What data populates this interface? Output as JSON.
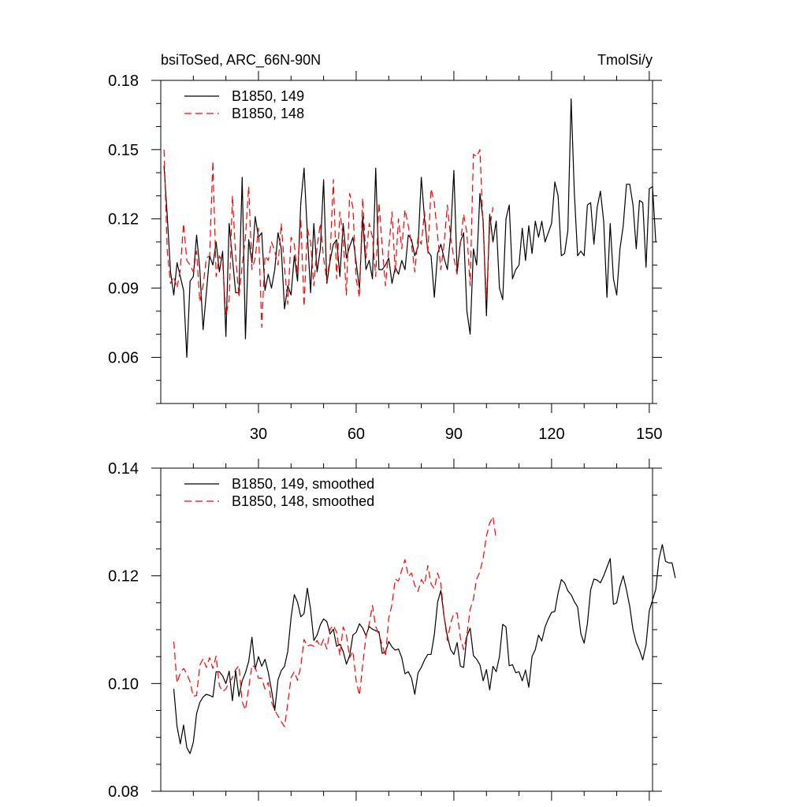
{
  "header": {
    "left_title": "bsiToSed, ARC_66N-90N",
    "right_title": "TmolSi/y"
  },
  "chart_data": [
    {
      "type": "line",
      "panel": "top",
      "xlim": [
        0,
        151
      ],
      "ylim": [
        0.04,
        0.18
      ],
      "x_ticks": [
        30,
        60,
        90,
        120,
        150
      ],
      "x_tick_labels": [
        "30",
        "60",
        "90",
        "120",
        "150"
      ],
      "y_ticks": [
        0.06,
        0.09,
        0.12,
        0.15,
        0.18
      ],
      "y_tick_labels": [
        "0.06",
        "0.09",
        "0.12",
        "0.15",
        "0.18"
      ],
      "y_minor_step": 0.01,
      "x_minor_step": 10,
      "legend_position": "top-left",
      "series": [
        {
          "name": "B1850, 149",
          "color": "#000000",
          "dash": "solid",
          "x_start": 1,
          "values": [
            0.143,
            0.121,
            0.097,
            0.087,
            0.101,
            0.095,
            0.089,
            0.06,
            0.093,
            0.095,
            0.113,
            0.098,
            0.072,
            0.088,
            0.104,
            0.1,
            0.11,
            0.097,
            0.106,
            0.069,
            0.118,
            0.103,
            0.088,
            0.088,
            0.138,
            0.068,
            0.111,
            0.101,
            0.121,
            0.112,
            0.114,
            0.089,
            0.096,
            0.09,
            0.098,
            0.114,
            0.107,
            0.081,
            0.091,
            0.087,
            0.104,
            0.093,
            0.127,
            0.142,
            0.114,
            0.088,
            0.118,
            0.097,
            0.107,
            0.137,
            0.092,
            0.102,
            0.109,
            0.111,
            0.095,
            0.118,
            0.103,
            0.108,
            0.112,
            0.101,
            0.09,
            0.121,
            0.098,
            0.102,
            0.094,
            0.142,
            0.098,
            0.098,
            0.1,
            0.103,
            0.092,
            0.099,
            0.096,
            0.102,
            0.098,
            0.113,
            0.111,
            0.104,
            0.108,
            0.138,
            0.12,
            0.106,
            0.104,
            0.086,
            0.105,
            0.109,
            0.103,
            0.098,
            0.113,
            0.141,
            0.097,
            0.11,
            0.114,
            0.08,
            0.07,
            0.107,
            0.1,
            0.131,
            0.119,
            0.078,
            0.122,
            0.11,
            0.119,
            0.09,
            0.085,
            0.12,
            0.126,
            0.094,
            0.098,
            0.1,
            0.116,
            0.102,
            0.117,
            0.105,
            0.119,
            0.112,
            0.119,
            0.11,
            0.114,
            0.118,
            0.136,
            0.13,
            0.104,
            0.105,
            0.115,
            0.172,
            0.131,
            0.104,
            0.106,
            0.104,
            0.126,
            0.127,
            0.109,
            0.125,
            0.132,
            0.119,
            0.086,
            0.118,
            0.094,
            0.087,
            0.107,
            0.117,
            0.135,
            0.135,
            0.126,
            0.107,
            0.128,
            0.127,
            0.099,
            0.133,
            0.134,
            0.11
          ]
        },
        {
          "name": "B1850, 148",
          "color": "#ff0000",
          "dash": "dashed",
          "x_start": 1,
          "values": [
            0.15,
            0.106,
            0.092,
            0.095,
            0.09,
            0.098,
            0.118,
            0.102,
            0.1,
            0.097,
            0.106,
            0.084,
            0.091,
            0.103,
            0.104,
            0.145,
            0.095,
            0.104,
            0.101,
            0.078,
            0.085,
            0.13,
            0.104,
            0.086,
            0.1,
            0.112,
            0.134,
            0.098,
            0.103,
            0.116,
            0.073,
            0.104,
            0.102,
            0.11,
            0.106,
            0.1,
            0.118,
            0.099,
            0.083,
            0.112,
            0.109,
            0.096,
            0.12,
            0.082,
            0.116,
            0.11,
            0.091,
            0.108,
            0.118,
            0.103,
            0.093,
            0.104,
            0.137,
            0.094,
            0.123,
            0.112,
            0.087,
            0.131,
            0.125,
            0.094,
            0.086,
            0.129,
            0.103,
            0.118,
            0.112,
            0.095,
            0.127,
            0.108,
            0.091,
            0.107,
            0.123,
            0.097,
            0.12,
            0.107,
            0.124,
            0.117,
            0.109,
            0.097,
            0.112,
            0.109,
            0.123,
            0.105,
            0.133,
            0.127,
            0.113,
            0.098,
            0.109,
            0.126,
            0.112,
            0.103,
            0.096,
            0.109,
            0.122,
            0.114,
            0.091,
            0.148,
            0.147,
            0.15,
            0.116,
            0.085,
            0.116,
            0.125
          ]
        }
      ]
    },
    {
      "type": "line",
      "panel": "bottom",
      "xlim": [
        0,
        151
      ],
      "ylim": [
        0.08,
        0.14
      ],
      "x_ticks": [
        30,
        60,
        90,
        120,
        150
      ],
      "y_ticks": [
        0.08,
        0.1,
        0.12,
        0.14
      ],
      "y_tick_labels": [
        "0.08",
        "0.10",
        "0.12",
        "0.14"
      ],
      "y_minor_step": 0.005,
      "x_minor_step": 10,
      "legend_position": "top-left",
      "series": [
        {
          "name": "B1850, 149, smoothed",
          "color": "#000000",
          "dash": "solid",
          "x_start": 4,
          "values": [
            0.099,
            0.092,
            0.0888,
            0.0923,
            0.0881,
            0.087,
            0.0891,
            0.0944,
            0.0965,
            0.0975,
            0.098,
            0.0978,
            0.0975,
            0.1022,
            0.1022,
            0.1014,
            0.1,
            0.1023,
            0.0968,
            0.1024,
            0.0976,
            0.1005,
            0.102,
            0.1041,
            0.1086,
            0.1027,
            0.105,
            0.1032,
            0.1045,
            0.1021,
            0.0988,
            0.095,
            0.1007,
            0.1024,
            0.1032,
            0.106,
            0.1122,
            0.1165,
            0.1151,
            0.1124,
            0.113,
            0.1177,
            0.1138,
            0.108,
            0.109,
            0.1109,
            0.112,
            0.1115,
            0.1092,
            0.1101,
            0.1069,
            0.1073,
            0.106,
            0.1036,
            0.1052,
            0.109,
            0.1095,
            0.1111,
            0.1103,
            0.1089,
            0.1106,
            0.1101,
            0.1098,
            0.1096,
            0.1056,
            0.1059,
            0.1078,
            0.1068,
            0.1062,
            0.1064,
            0.1048,
            0.1018,
            0.1022,
            0.101,
            0.098,
            0.102,
            0.103,
            0.1044,
            0.1054,
            0.1054,
            0.1091,
            0.1151,
            0.1173,
            0.1124,
            0.1088,
            0.1063,
            0.1054,
            0.1076,
            0.1032,
            0.103,
            0.1088,
            0.1103,
            0.1052,
            0.1045,
            0.1035,
            0.1005,
            0.1026,
            0.0988,
            0.1032,
            0.1022,
            0.105,
            0.111,
            0.1105,
            0.1033,
            0.1035,
            0.102,
            0.1022,
            0.1005,
            0.1025,
            0.0993,
            0.105,
            0.1063,
            0.109,
            0.1079,
            0.1105,
            0.112,
            0.1132,
            0.1134,
            0.1168,
            0.1193,
            0.1187,
            0.1172,
            0.1165,
            0.1152,
            0.1142,
            0.1092,
            0.1075,
            0.1111,
            0.1174,
            0.1194,
            0.1192,
            0.1187,
            0.12,
            0.1216,
            0.1232,
            0.1147,
            0.115,
            0.118,
            0.12,
            0.1174,
            0.1143,
            0.11,
            0.1076,
            0.1062,
            0.1044,
            0.1072,
            0.1135,
            0.1155,
            0.1175,
            0.1232,
            0.1258,
            0.1227,
            0.1224,
            0.1224,
            0.1196
          ]
        },
        {
          "name": "B1850, 148, smoothed",
          "color": "#ff0000",
          "dash": "dashed",
          "x_start": 4,
          "values": [
            0.1078,
            0.1001,
            0.102,
            0.1028,
            0.1018,
            0.1003,
            0.0976,
            0.0978,
            0.1034,
            0.1046,
            0.103,
            0.1048,
            0.1028,
            0.1051,
            0.0996,
            0.0985,
            0.099,
            0.1002,
            0.1011,
            0.1026,
            0.1033,
            0.0966,
            0.0951,
            0.0992,
            0.1034,
            0.103,
            0.101,
            0.101,
            0.099,
            0.1002,
            0.0966,
            0.095,
            0.094,
            0.0929,
            0.092,
            0.0963,
            0.1011,
            0.1022,
            0.1006,
            0.1032,
            0.1082,
            0.1069,
            0.1072,
            0.1069,
            0.108,
            0.1068,
            0.1082,
            0.1064,
            0.1101,
            0.1108,
            0.1095,
            0.1052,
            0.1105,
            0.109,
            0.1048,
            0.106,
            0.1005,
            0.0978,
            0.1034,
            0.1086,
            0.1111,
            0.1145,
            0.1106,
            0.1091,
            0.1072,
            0.105,
            0.1121,
            0.1147,
            0.1194,
            0.119,
            0.1211,
            0.123,
            0.1199,
            0.1205,
            0.1182,
            0.1171,
            0.1193,
            0.1184,
            0.1219,
            0.1185,
            0.1176,
            0.1205,
            0.1186,
            0.1125,
            0.108,
            0.1112,
            0.113,
            0.1131,
            0.1085,
            0.1063,
            0.109,
            0.1138,
            0.1157,
            0.1194,
            0.1207,
            0.1233,
            0.1274,
            0.1298,
            0.131,
            0.1267
          ]
        }
      ]
    }
  ]
}
